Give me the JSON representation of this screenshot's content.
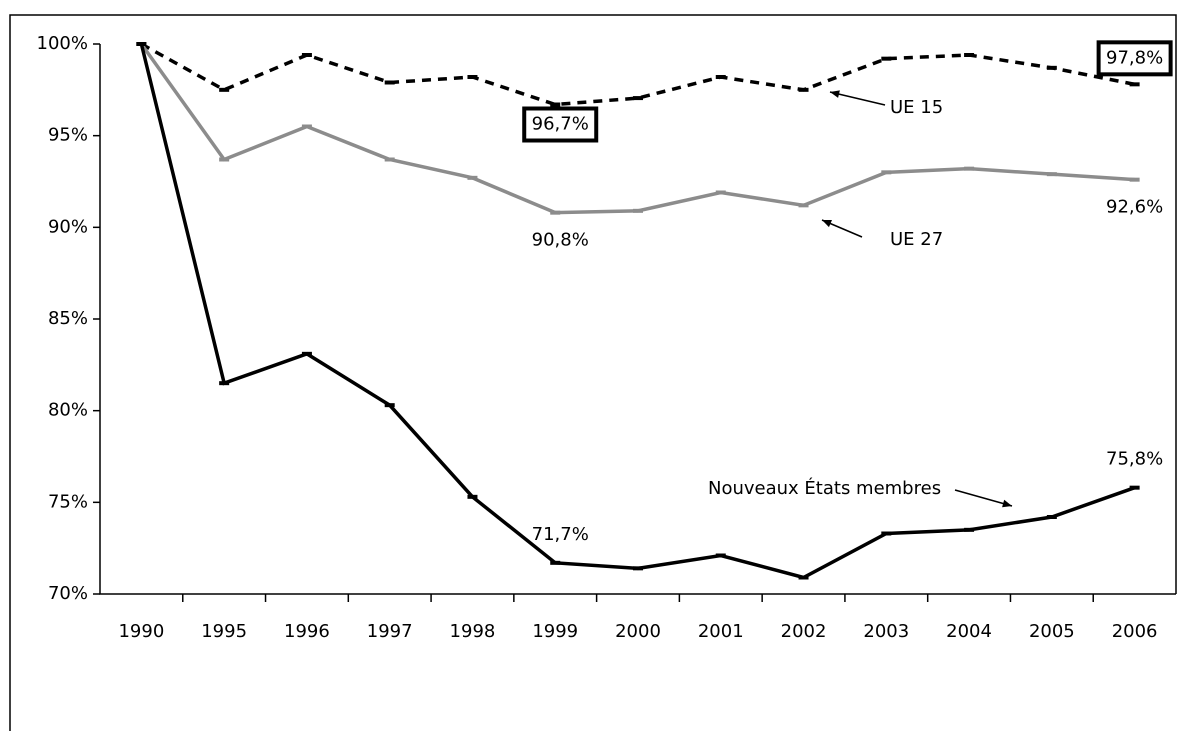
{
  "chart_data": {
    "type": "line",
    "categories": [
      "1990",
      "1995",
      "1996",
      "1997",
      "1998",
      "1999",
      "2000",
      "2001",
      "2002",
      "2003",
      "2004",
      "2005",
      "2006"
    ],
    "ylim": [
      70,
      100
    ],
    "yticks": [
      {
        "value": 70,
        "label": "70%"
      },
      {
        "value": 75,
        "label": "75%"
      },
      {
        "value": 80,
        "label": "80%"
      },
      {
        "value": 85,
        "label": "85%"
      },
      {
        "value": 90,
        "label": "90%"
      },
      {
        "value": 95,
        "label": "95%"
      },
      {
        "value": 100,
        "label": "100%"
      }
    ],
    "grid": false,
    "legend": false,
    "series": [
      {
        "name": "UE 15",
        "color": "#000000",
        "dashed": true,
        "values": [
          100,
          97.5,
          99.4,
          97.9,
          98.2,
          96.7,
          97.05,
          98.2,
          97.5,
          99.2,
          99.4,
          98.7,
          97.8
        ],
        "value_labels": [
          null,
          null,
          null,
          null,
          null,
          "96,7%",
          null,
          null,
          null,
          null,
          null,
          null,
          "97,8%"
        ],
        "boxed_labels": true
      },
      {
        "name": "UE 27",
        "color": "#8c8c8c",
        "dashed": false,
        "values": [
          100,
          93.7,
          95.5,
          93.7,
          92.7,
          90.8,
          90.9,
          91.9,
          91.2,
          93.0,
          93.2,
          92.9,
          92.6
        ],
        "value_labels": [
          null,
          null,
          null,
          null,
          null,
          "90,8%",
          null,
          null,
          null,
          null,
          null,
          null,
          "92,6%"
        ],
        "boxed_labels": false
      },
      {
        "name": "Nouveaux États membres",
        "color": "#000000",
        "dashed": false,
        "values": [
          100,
          81.5,
          83.1,
          80.3,
          75.3,
          71.7,
          71.4,
          72.1,
          70.9,
          73.3,
          73.5,
          74.2,
          75.8
        ],
        "value_labels": [
          null,
          null,
          null,
          null,
          null,
          "71,7%",
          null,
          null,
          null,
          null,
          null,
          null,
          "75,8%"
        ],
        "boxed_labels": false
      }
    ]
  }
}
